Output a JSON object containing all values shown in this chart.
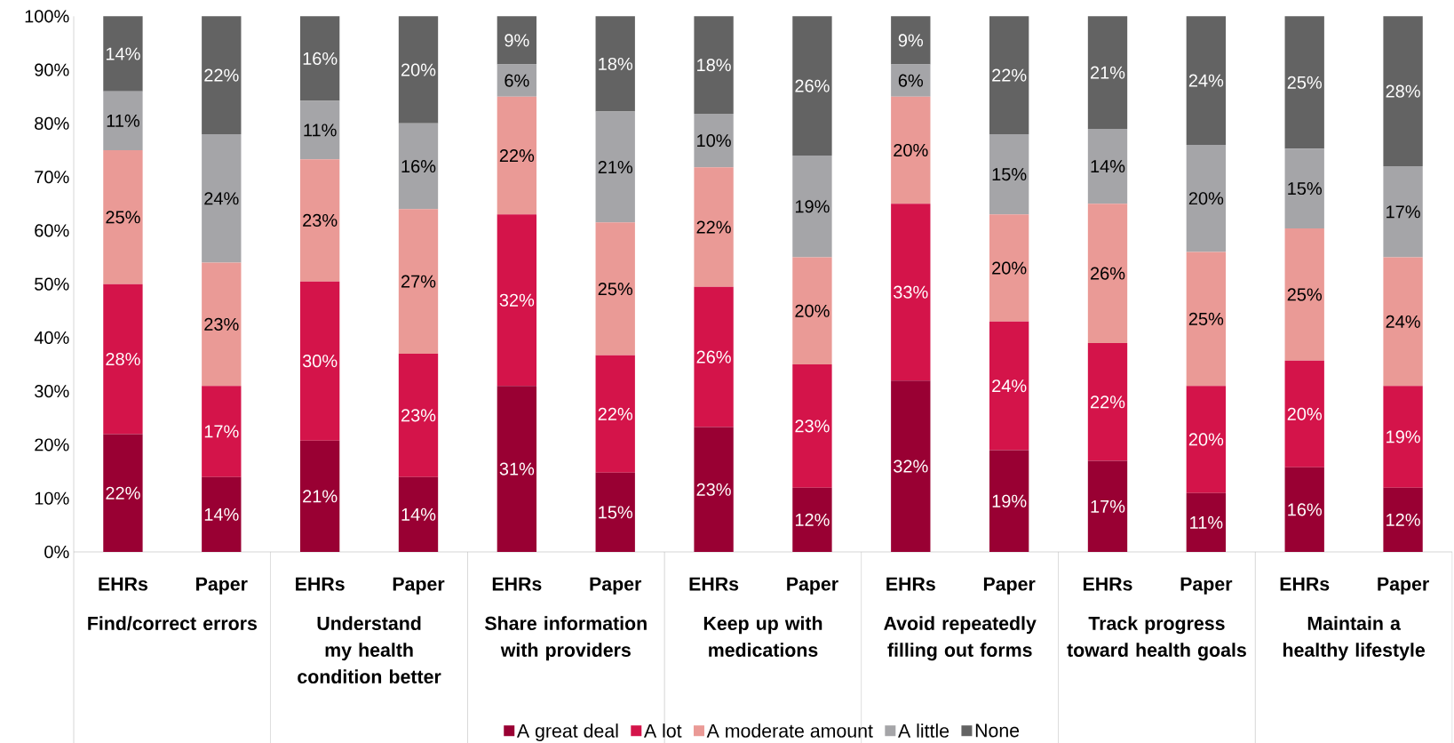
{
  "chart_data": {
    "type": "bar",
    "stacked": true,
    "legend": "bottom",
    "categories": [
      "EHRs",
      "Paper",
      "EHRs",
      "Paper",
      "EHRs",
      "Paper",
      "EHRs",
      "Paper",
      "EHRs",
      "Paper",
      "EHRs",
      "Paper",
      "EHRs",
      "Paper"
    ],
    "annotations": [
      "Find/correct errors",
      "Understand my health condition better",
      "Share information with providers",
      "Keep up with medications",
      "Avoid repeatedly filling out forms",
      "Track progress toward health goals",
      "Maintain a healthy lifestyle"
    ],
    "ylim": [
      0,
      100
    ],
    "yticks": [
      {
        "value": 0,
        "label": "0%"
      },
      {
        "value": 10,
        "label": "10%"
      },
      {
        "value": 20,
        "label": "20%"
      },
      {
        "value": 30,
        "label": "30%"
      },
      {
        "value": 40,
        "label": "40%"
      },
      {
        "value": 50,
        "label": "50%"
      },
      {
        "value": 60,
        "label": "60%"
      },
      {
        "value": 70,
        "label": "70%"
      },
      {
        "value": 80,
        "label": "80%"
      },
      {
        "value": 90,
        "label": "90%"
      },
      {
        "value": 100,
        "label": "100%"
      }
    ],
    "series": [
      {
        "name": "A great deal",
        "color": "#990033",
        "values": [
          22,
          14,
          20.8,
          14,
          31,
          14.8,
          23.3,
          12,
          32,
          19,
          17,
          11,
          15.8,
          12
        ],
        "value_labels": [
          "22%",
          "14%",
          "21%",
          "14%",
          "31%",
          "15%",
          "23%",
          "12%",
          "32%",
          "19%",
          "17%",
          "11%",
          "16%",
          "12%"
        ]
      },
      {
        "name": "A lot",
        "color": "#d4144a",
        "values": [
          28,
          17,
          29.7,
          23,
          32,
          21.9,
          26.2,
          23,
          33,
          24,
          22,
          20,
          19.9,
          19
        ],
        "value_labels": [
          "28%",
          "17%",
          "30%",
          "23%",
          "32%",
          "22%",
          "26%",
          "23%",
          "33%",
          "24%",
          "22%",
          "20%",
          "20%",
          "19%"
        ]
      },
      {
        "name": "A moderate amount",
        "color": "#ea9a96",
        "values": [
          25,
          23,
          22.8,
          27,
          22,
          24.8,
          22.3,
          20,
          20,
          20,
          26,
          25,
          24.7,
          24
        ],
        "value_labels": [
          "25%",
          "23%",
          "23%",
          "27%",
          "22%",
          "25%",
          "22%",
          "20%",
          "20%",
          "20%",
          "26%",
          "25%",
          "25%",
          "24%"
        ]
      },
      {
        "name": "A little",
        "color": "#a5a5a8",
        "values": [
          11,
          24,
          10.9,
          16,
          6,
          20.7,
          10.0,
          19,
          6,
          15,
          14,
          20,
          14.9,
          17
        ],
        "value_labels": [
          "11%",
          "24%",
          "11%",
          "16%",
          "6%",
          "21%",
          "10%",
          "19%",
          "6%",
          "15%",
          "14%",
          "20%",
          "15%",
          "17%"
        ]
      },
      {
        "name": "None",
        "color": "#636363",
        "values": [
          14,
          22,
          15.8,
          20,
          9,
          17.8,
          18.2,
          26,
          9,
          22,
          21,
          24,
          24.7,
          28
        ],
        "value_labels": [
          "14%",
          "22%",
          "16%",
          "20%",
          "9%",
          "18%",
          "18%",
          "26%",
          "9%",
          "22%",
          "21%",
          "24%",
          "25%",
          "28%"
        ]
      }
    ]
  }
}
